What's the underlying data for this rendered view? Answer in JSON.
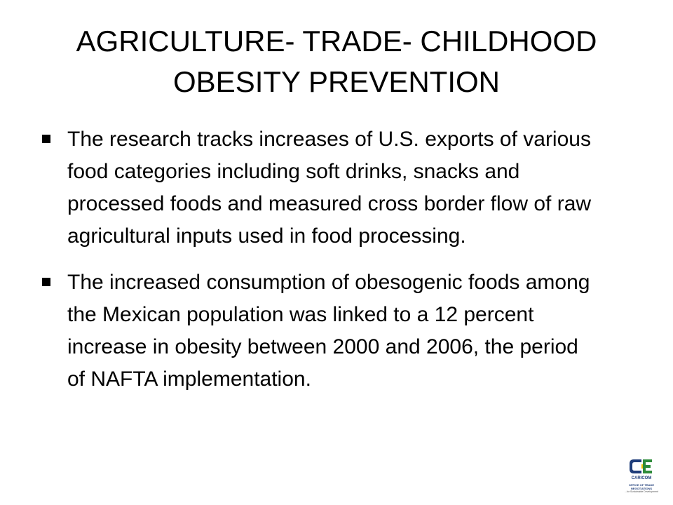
{
  "slide": {
    "title_lines": [
      "AGRICULTURE- TRADE- CHILDHOOD",
      "OBESITY PREVENTION"
    ],
    "bullets": [
      "The research tracks increases of  U.S. exports of various food categories including soft drinks, snacks and processed foods and measured cross border flow of raw agricultural inputs used in food processing.",
      "The increased consumption of obesogenic foods among the Mexican population was linked to a 12 percent increase in obesity between 2000 and 2006, the period of NAFTA implementation."
    ],
    "bullet_icon": "square-bullet-icon"
  },
  "logo": {
    "name": "CARICOM",
    "office": "OFFICE OF TRADE NEGOTIATIONS",
    "tagline": "...for Sustainable Development",
    "icon": "caricom-logo-icon",
    "colors": {
      "blue": "#1f3d7a",
      "green": "#2e8b3a",
      "yellow": "#f2c200"
    }
  }
}
